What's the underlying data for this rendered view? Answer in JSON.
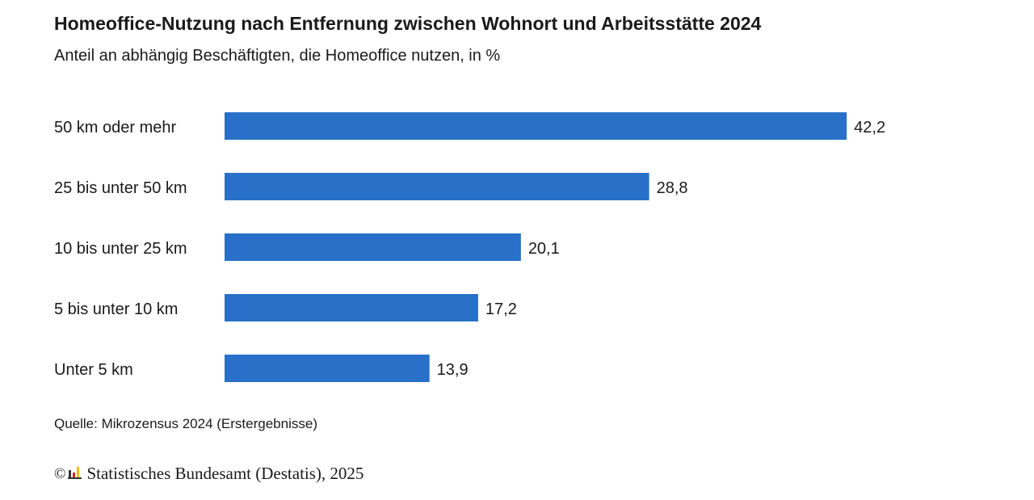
{
  "header": {
    "title": "Homeoffice-Nutzung nach Entfernung zwischen Wohnort und Arbeitsstätte 2024",
    "subtitle": "Anteil an abhängig Beschäftigten, die Homeoffice nutzen, in %"
  },
  "chart_data": {
    "type": "bar",
    "orientation": "horizontal",
    "title": "Homeoffice-Nutzung nach Entfernung zwischen Wohnort und Arbeitsstätte 2024",
    "subtitle": "Anteil an abhängig Beschäftigten, die Homeoffice nutzen, in %",
    "categories": [
      "50 km oder mehr",
      "25 bis unter 50 km",
      "10 bis unter 25 km",
      "5 bis unter 10 km",
      "Unter 5 km"
    ],
    "values": [
      42.2,
      28.8,
      20.1,
      17.2,
      13.9
    ],
    "value_labels": [
      "42,2",
      "28,8",
      "20,1",
      "17,2",
      "13,9"
    ],
    "grid": false,
    "legend": "none",
    "bar_color": "#2870c8"
  },
  "footer": {
    "source": "Quelle: Mikrozensus 2024 (Erstergebnisse)",
    "copyright_symbol": "©",
    "publisher": "Statistisches Bundesamt (Destatis), 2025"
  },
  "colors": {
    "bar": "#2870c8",
    "text": "#1a1a1a",
    "logo_dark": "#333333",
    "logo_red": "#d4261c",
    "logo_gold": "#f2b705"
  }
}
